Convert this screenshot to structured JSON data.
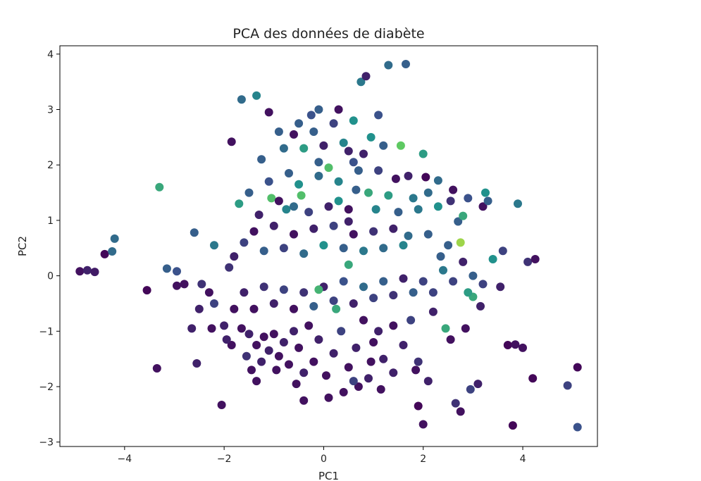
{
  "chart_data": {
    "type": "scatter",
    "title": "PCA des données de diabète",
    "xlabel": "PC1",
    "ylabel": "PC2",
    "xlim": [
      -5.3,
      5.5
    ],
    "ylim": [
      -3.08,
      4.15
    ],
    "xticks": [
      -4,
      -2,
      0,
      2,
      4
    ],
    "yticks": [
      -3,
      -2,
      -1,
      0,
      1,
      2,
      3,
      4
    ],
    "xtick_labels": [
      "−4",
      "−2",
      "0",
      "2",
      "4"
    ],
    "ytick_labels": [
      "−3",
      "−2",
      "−1",
      "0",
      "1",
      "2",
      "3",
      "4"
    ],
    "grid": false,
    "colormap": "viridis",
    "color_stops": [
      "#440154",
      "#3b528b",
      "#21918c",
      "#5ec962",
      "#fde725"
    ],
    "points": [
      {
        "x": -4.9,
        "y": 0.08,
        "c": 0.05
      },
      {
        "x": -4.75,
        "y": 0.1,
        "c": 0.1
      },
      {
        "x": -4.6,
        "y": 0.07,
        "c": 0.08
      },
      {
        "x": -4.4,
        "y": 0.39,
        "c": 0.02
      },
      {
        "x": -4.25,
        "y": 0.44,
        "c": 0.35
      },
      {
        "x": -4.2,
        "y": 0.67,
        "c": 0.35
      },
      {
        "x": -3.55,
        "y": -0.26,
        "c": 0.02
      },
      {
        "x": -3.35,
        "y": -1.67,
        "c": 0.05
      },
      {
        "x": -3.3,
        "y": 1.6,
        "c": 0.6
      },
      {
        "x": -3.15,
        "y": 0.13,
        "c": 0.3
      },
      {
        "x": -2.95,
        "y": 0.08,
        "c": 0.25
      },
      {
        "x": -2.6,
        "y": 0.78,
        "c": 0.3
      },
      {
        "x": -2.55,
        "y": -1.58,
        "c": 0.1
      },
      {
        "x": -2.5,
        "y": -0.6,
        "c": 0.1
      },
      {
        "x": -2.05,
        "y": -2.33,
        "c": 0.05
      },
      {
        "x": -1.85,
        "y": 2.42,
        "c": 0.05
      },
      {
        "x": -1.85,
        "y": -1.25,
        "c": 0.05
      },
      {
        "x": -1.65,
        "y": 3.18,
        "c": 0.35
      },
      {
        "x": -1.55,
        "y": -1.45,
        "c": 0.15
      },
      {
        "x": -1.35,
        "y": 3.25,
        "c": 0.45
      },
      {
        "x": -1.25,
        "y": 2.1,
        "c": 0.3
      },
      {
        "x": -1.05,
        "y": 1.4,
        "c": 0.7
      },
      {
        "x": -0.9,
        "y": 2.6,
        "c": 0.3
      },
      {
        "x": -0.75,
        "y": 1.2,
        "c": 0.45
      },
      {
        "x": -0.6,
        "y": 1.25,
        "c": 0.35
      },
      {
        "x": -0.45,
        "y": 1.45,
        "c": 0.7
      },
      {
        "x": -0.25,
        "y": 2.9,
        "c": 0.25
      },
      {
        "x": -0.1,
        "y": 2.05,
        "c": 0.3
      },
      {
        "x": 0.1,
        "y": 1.95,
        "c": 0.7
      },
      {
        "x": 0.3,
        "y": 1.35,
        "c": 0.5
      },
      {
        "x": 0.5,
        "y": 2.25,
        "c": 0.1
      },
      {
        "x": 0.5,
        "y": 0.98,
        "c": 0.1
      },
      {
        "x": 0.6,
        "y": 2.8,
        "c": 0.5
      },
      {
        "x": 0.65,
        "y": 1.55,
        "c": 0.3
      },
      {
        "x": 0.75,
        "y": 3.5,
        "c": 0.4
      },
      {
        "x": 0.85,
        "y": 3.6,
        "c": 0.1
      },
      {
        "x": 0.95,
        "y": 2.5,
        "c": 0.5
      },
      {
        "x": 1.05,
        "y": 1.2,
        "c": 0.45
      },
      {
        "x": 1.1,
        "y": 2.9,
        "c": 0.25
      },
      {
        "x": 1.2,
        "y": 2.35,
        "c": 0.3
      },
      {
        "x": 1.3,
        "y": 3.8,
        "c": 0.35
      },
      {
        "x": 1.45,
        "y": 1.75,
        "c": 0.05
      },
      {
        "x": 1.55,
        "y": 2.35,
        "c": 0.75
      },
      {
        "x": 1.65,
        "y": 3.82,
        "c": 0.3
      },
      {
        "x": 1.7,
        "y": 0.72,
        "c": 0.35
      },
      {
        "x": 1.8,
        "y": 1.4,
        "c": 0.4
      },
      {
        "x": 2.0,
        "y": 2.2,
        "c": 0.55
      },
      {
        "x": 2.05,
        "y": 1.78,
        "c": 0.02
      },
      {
        "x": 2.1,
        "y": 0.75,
        "c": 0.3
      },
      {
        "x": 2.2,
        "y": -0.3,
        "c": 0.2
      },
      {
        "x": 2.3,
        "y": 1.72,
        "c": 0.35
      },
      {
        "x": 2.35,
        "y": 0.35,
        "c": 0.3
      },
      {
        "x": 2.45,
        "y": -0.95,
        "c": 0.6
      },
      {
        "x": 2.55,
        "y": 1.35,
        "c": 0.15
      },
      {
        "x": 2.6,
        "y": 1.55,
        "c": 0.05
      },
      {
        "x": 2.7,
        "y": 0.98,
        "c": 0.3
      },
      {
        "x": 2.75,
        "y": 0.6,
        "c": 0.85
      },
      {
        "x": 2.8,
        "y": 1.08,
        "c": 0.6
      },
      {
        "x": 2.9,
        "y": 1.4,
        "c": 0.25
      },
      {
        "x": 3.0,
        "y": -0.38,
        "c": 0.6
      },
      {
        "x": 3.1,
        "y": -1.95,
        "c": 0.1
      },
      {
        "x": 3.2,
        "y": 1.25,
        "c": 0.05
      },
      {
        "x": 3.25,
        "y": 1.5,
        "c": 0.5
      },
      {
        "x": 3.3,
        "y": 1.35,
        "c": 0.3
      },
      {
        "x": 3.4,
        "y": 0.3,
        "c": 0.5
      },
      {
        "x": 3.55,
        "y": -0.2,
        "c": 0.1
      },
      {
        "x": 3.6,
        "y": 0.45,
        "c": 0.2
      },
      {
        "x": 3.7,
        "y": -1.25,
        "c": 0.02
      },
      {
        "x": 3.85,
        "y": -1.24,
        "c": 0.05
      },
      {
        "x": 3.9,
        "y": 1.3,
        "c": 0.4
      },
      {
        "x": 4.0,
        "y": -1.3,
        "c": 0.05
      },
      {
        "x": 4.1,
        "y": 0.25,
        "c": 0.15
      },
      {
        "x": 4.25,
        "y": 0.3,
        "c": 0.05
      },
      {
        "x": 4.2,
        "y": -1.85,
        "c": 0.02
      },
      {
        "x": 3.8,
        "y": -2.7,
        "c": 0.02
      },
      {
        "x": 4.9,
        "y": -1.98,
        "c": 0.2
      },
      {
        "x": 5.1,
        "y": -1.65,
        "c": 0.02
      },
      {
        "x": 5.1,
        "y": -2.73,
        "c": 0.25
      },
      {
        "x": 2.95,
        "y": -2.05,
        "c": 0.2
      },
      {
        "x": 2.65,
        "y": -2.3,
        "c": 0.15
      },
      {
        "x": 2.75,
        "y": -2.45,
        "c": 0.05
      },
      {
        "x": 2.0,
        "y": -2.68,
        "c": 0.05
      },
      {
        "x": 1.9,
        "y": -2.35,
        "c": 0.02
      },
      {
        "x": 2.1,
        "y": -1.9,
        "c": 0.1
      },
      {
        "x": 1.9,
        "y": -1.55,
        "c": 0.15
      },
      {
        "x": 1.6,
        "y": -1.25,
        "c": 0.1
      },
      {
        "x": 1.75,
        "y": -0.8,
        "c": 0.2
      },
      {
        "x": 1.4,
        "y": -0.9,
        "c": 0.05
      },
      {
        "x": 1.2,
        "y": -1.5,
        "c": 0.1
      },
      {
        "x": 1.0,
        "y": -1.2,
        "c": 0.05
      },
      {
        "x": 0.7,
        "y": -2.0,
        "c": 0.05
      },
      {
        "x": 0.4,
        "y": -2.1,
        "c": 0.05
      },
      {
        "x": 0.1,
        "y": -2.2,
        "c": 0.05
      },
      {
        "x": -0.4,
        "y": -2.25,
        "c": 0.05
      },
      {
        "x": -1.35,
        "y": -1.9,
        "c": 0.05
      },
      {
        "x": -2.65,
        "y": -0.95,
        "c": 0.1
      },
      {
        "x": -2.95,
        "y": -0.18,
        "c": 0.05
      },
      {
        "x": -2.3,
        "y": -0.3,
        "c": 0.05
      },
      {
        "x": -2.2,
        "y": -0.5,
        "c": 0.2
      },
      {
        "x": -2.0,
        "y": -0.9,
        "c": 0.1
      },
      {
        "x": -1.8,
        "y": -0.6,
        "c": 0.05
      },
      {
        "x": -1.65,
        "y": -0.95,
        "c": 0.05
      },
      {
        "x": -1.5,
        "y": -1.05,
        "c": 0.1
      },
      {
        "x": -1.35,
        "y": -1.25,
        "c": 0.05
      },
      {
        "x": -1.2,
        "y": -1.1,
        "c": 0.05
      },
      {
        "x": -1.1,
        "y": -1.35,
        "c": 0.1
      },
      {
        "x": -1.0,
        "y": -1.05,
        "c": 0.05
      },
      {
        "x": -0.9,
        "y": -1.45,
        "c": 0.05
      },
      {
        "x": -0.8,
        "y": -1.2,
        "c": 0.1
      },
      {
        "x": -0.7,
        "y": -1.6,
        "c": 0.05
      },
      {
        "x": -0.6,
        "y": -1.0,
        "c": 0.1
      },
      {
        "x": -0.5,
        "y": -1.3,
        "c": 0.05
      },
      {
        "x": -0.4,
        "y": -1.75,
        "c": 0.1
      },
      {
        "x": -0.3,
        "y": -0.9,
        "c": 0.05
      },
      {
        "x": -0.2,
        "y": -1.55,
        "c": 0.05
      },
      {
        "x": -0.1,
        "y": -1.15,
        "c": 0.1
      },
      {
        "x": 0.05,
        "y": -1.8,
        "c": 0.05
      },
      {
        "x": 0.2,
        "y": -1.4,
        "c": 0.1
      },
      {
        "x": 0.35,
        "y": -1.0,
        "c": 0.2
      },
      {
        "x": 0.5,
        "y": -1.65,
        "c": 0.05
      },
      {
        "x": 0.65,
        "y": -1.3,
        "c": 0.1
      },
      {
        "x": 0.8,
        "y": -0.8,
        "c": 0.05
      },
      {
        "x": 0.95,
        "y": -1.55,
        "c": 0.05
      },
      {
        "x": 1.1,
        "y": -1.0,
        "c": 0.1
      },
      {
        "x": -1.6,
        "y": -0.3,
        "c": 0.1
      },
      {
        "x": -1.4,
        "y": -0.6,
        "c": 0.05
      },
      {
        "x": -1.2,
        "y": -0.2,
        "c": 0.15
      },
      {
        "x": -1.0,
        "y": -0.5,
        "c": 0.1
      },
      {
        "x": -0.8,
        "y": -0.25,
        "c": 0.2
      },
      {
        "x": -0.6,
        "y": -0.6,
        "c": 0.05
      },
      {
        "x": -0.4,
        "y": -0.3,
        "c": 0.15
      },
      {
        "x": -0.2,
        "y": -0.55,
        "c": 0.3
      },
      {
        "x": 0.0,
        "y": -0.2,
        "c": 0.1
      },
      {
        "x": 0.2,
        "y": -0.45,
        "c": 0.2
      },
      {
        "x": 0.4,
        "y": -0.1,
        "c": 0.25
      },
      {
        "x": 0.6,
        "y": -0.5,
        "c": 0.1
      },
      {
        "x": 0.8,
        "y": -0.2,
        "c": 0.35
      },
      {
        "x": 1.0,
        "y": -0.4,
        "c": 0.2
      },
      {
        "x": 1.2,
        "y": -0.1,
        "c": 0.3
      },
      {
        "x": 1.4,
        "y": -0.35,
        "c": 0.15
      },
      {
        "x": 1.6,
        "y": -0.05,
        "c": 0.1
      },
      {
        "x": 1.8,
        "y": -0.3,
        "c": 0.3
      },
      {
        "x": 2.0,
        "y": -0.1,
        "c": 0.2
      },
      {
        "x": -0.1,
        "y": -0.25,
        "c": 0.65
      },
      {
        "x": 0.25,
        "y": -0.6,
        "c": 0.6
      },
      {
        "x": 0.5,
        "y": 0.2,
        "c": 0.6
      },
      {
        "x": -1.8,
        "y": 0.35,
        "c": 0.1
      },
      {
        "x": -1.6,
        "y": 0.6,
        "c": 0.2
      },
      {
        "x": -1.4,
        "y": 0.8,
        "c": 0.05
      },
      {
        "x": -1.2,
        "y": 0.45,
        "c": 0.3
      },
      {
        "x": -1.0,
        "y": 0.9,
        "c": 0.1
      },
      {
        "x": -0.8,
        "y": 0.5,
        "c": 0.2
      },
      {
        "x": -0.6,
        "y": 0.75,
        "c": 0.05
      },
      {
        "x": -0.4,
        "y": 0.4,
        "c": 0.35
      },
      {
        "x": -0.2,
        "y": 0.85,
        "c": 0.1
      },
      {
        "x": 0.0,
        "y": 0.55,
        "c": 0.5
      },
      {
        "x": 0.2,
        "y": 0.9,
        "c": 0.2
      },
      {
        "x": 0.4,
        "y": 0.5,
        "c": 0.3
      },
      {
        "x": 0.6,
        "y": 0.75,
        "c": 0.05
      },
      {
        "x": 0.8,
        "y": 0.45,
        "c": 0.4
      },
      {
        "x": 1.0,
        "y": 0.8,
        "c": 0.15
      },
      {
        "x": 1.2,
        "y": 0.5,
        "c": 0.35
      },
      {
        "x": 1.4,
        "y": 0.85,
        "c": 0.1
      },
      {
        "x": 1.6,
        "y": 0.55,
        "c": 0.45
      },
      {
        "x": -2.2,
        "y": 0.55,
        "c": 0.4
      },
      {
        "x": -1.9,
        "y": 0.15,
        "c": 0.15
      },
      {
        "x": -1.7,
        "y": 1.3,
        "c": 0.55
      },
      {
        "x": -1.5,
        "y": 1.5,
        "c": 0.3
      },
      {
        "x": -1.3,
        "y": 1.1,
        "c": 0.1
      },
      {
        "x": -1.1,
        "y": 1.7,
        "c": 0.25
      },
      {
        "x": -0.9,
        "y": 1.35,
        "c": 0.05
      },
      {
        "x": -0.7,
        "y": 1.85,
        "c": 0.3
      },
      {
        "x": -0.5,
        "y": 1.65,
        "c": 0.5
      },
      {
        "x": -0.3,
        "y": 1.15,
        "c": 0.2
      },
      {
        "x": -0.1,
        "y": 1.8,
        "c": 0.35
      },
      {
        "x": 0.1,
        "y": 1.25,
        "c": 0.1
      },
      {
        "x": 0.3,
        "y": 1.7,
        "c": 0.45
      },
      {
        "x": 0.5,
        "y": 1.2,
        "c": 0.05
      },
      {
        "x": 0.7,
        "y": 1.9,
        "c": 0.3
      },
      {
        "x": 0.9,
        "y": 1.5,
        "c": 0.6
      },
      {
        "x": 1.1,
        "y": 1.9,
        "c": 0.2
      },
      {
        "x": 1.3,
        "y": 1.45,
        "c": 0.55
      },
      {
        "x": 1.5,
        "y": 1.15,
        "c": 0.3
      },
      {
        "x": 1.7,
        "y": 1.8,
        "c": 0.1
      },
      {
        "x": 1.9,
        "y": 1.2,
        "c": 0.4
      },
      {
        "x": 2.1,
        "y": 1.5,
        "c": 0.35
      },
      {
        "x": 2.3,
        "y": 1.25,
        "c": 0.5
      },
      {
        "x": -0.8,
        "y": 2.3,
        "c": 0.35
      },
      {
        "x": -0.6,
        "y": 2.55,
        "c": 0.05
      },
      {
        "x": -0.4,
        "y": 2.3,
        "c": 0.55
      },
      {
        "x": -0.2,
        "y": 2.6,
        "c": 0.3
      },
      {
        "x": 0.0,
        "y": 2.35,
        "c": 0.1
      },
      {
        "x": 0.2,
        "y": 2.75,
        "c": 0.2
      },
      {
        "x": 0.4,
        "y": 2.4,
        "c": 0.45
      },
      {
        "x": 0.6,
        "y": 2.05,
        "c": 0.25
      },
      {
        "x": 0.8,
        "y": 2.2,
        "c": 0.1
      },
      {
        "x": -0.1,
        "y": 3.0,
        "c": 0.3
      },
      {
        "x": 0.3,
        "y": 3.0,
        "c": 0.05
      },
      {
        "x": -1.1,
        "y": 2.95,
        "c": 0.05
      },
      {
        "x": -0.5,
        "y": 2.75,
        "c": 0.3
      },
      {
        "x": 2.4,
        "y": 0.1,
        "c": 0.4
      },
      {
        "x": 2.6,
        "y": -0.1,
        "c": 0.2
      },
      {
        "x": 2.8,
        "y": 0.25,
        "c": 0.1
      },
      {
        "x": 3.0,
        "y": 0.0,
        "c": 0.3
      },
      {
        "x": 3.2,
        "y": -0.15,
        "c": 0.2
      },
      {
        "x": 2.5,
        "y": 0.55,
        "c": 0.3
      },
      {
        "x": 2.9,
        "y": -0.3,
        "c": 0.55
      },
      {
        "x": 2.2,
        "y": -0.65,
        "c": 0.1
      },
      {
        "x": 2.55,
        "y": -1.15,
        "c": 0.05
      },
      {
        "x": 2.85,
        "y": -0.95,
        "c": 0.05
      },
      {
        "x": 3.15,
        "y": -0.55,
        "c": 0.1
      },
      {
        "x": 1.85,
        "y": -1.7,
        "c": 0.05
      },
      {
        "x": 1.4,
        "y": -1.75,
        "c": 0.1
      },
      {
        "x": 1.15,
        "y": -2.05,
        "c": 0.05
      },
      {
        "x": 0.9,
        "y": -1.85,
        "c": 0.1
      },
      {
        "x": 0.6,
        "y": -1.9,
        "c": 0.2
      },
      {
        "x": -0.55,
        "y": -1.95,
        "c": 0.05
      },
      {
        "x": -0.95,
        "y": -1.7,
        "c": 0.05
      },
      {
        "x": -1.25,
        "y": -1.55,
        "c": 0.1
      },
      {
        "x": -1.45,
        "y": -1.7,
        "c": 0.05
      },
      {
        "x": -2.8,
        "y": -0.15,
        "c": 0.05
      },
      {
        "x": -2.45,
        "y": -0.15,
        "c": 0.15
      },
      {
        "x": -2.25,
        "y": -0.95,
        "c": 0.05
      },
      {
        "x": -1.95,
        "y": -1.15,
        "c": 0.1
      }
    ]
  }
}
